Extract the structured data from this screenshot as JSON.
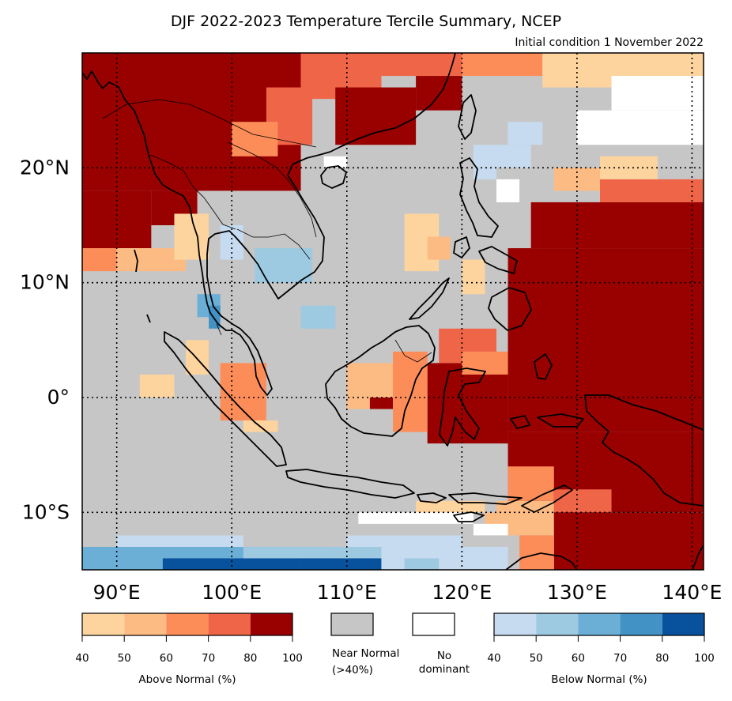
{
  "title": "DJF 2022-2023 Temperature Tercile Summary, NCEP",
  "subtitle": "Initial condition 1 November 2022",
  "map": {
    "lon_range": [
      87,
      141
    ],
    "lat_range": [
      -15,
      30
    ],
    "lon_ticks": [
      {
        "value": 90,
        "label": "90°E"
      },
      {
        "value": 100,
        "label": "100°E"
      },
      {
        "value": 110,
        "label": "110°E"
      },
      {
        "value": 120,
        "label": "120°E"
      },
      {
        "value": 130,
        "label": "130°E"
      },
      {
        "value": 140,
        "label": "140°E"
      }
    ],
    "lat_ticks": [
      {
        "value": 20,
        "label": "20°N"
      },
      {
        "value": 10,
        "label": "10°N"
      },
      {
        "value": 0,
        "label": "0°"
      },
      {
        "value": -10,
        "label": "10°S"
      }
    ],
    "gridlines": "dotted",
    "colors": {
      "above": [
        "#fdd49e",
        "#fdbb84",
        "#fc8d59",
        "#ef6548",
        "#990000"
      ],
      "near_normal": "#c6c6c6",
      "no_dominant": "#ffffff",
      "below": [
        "#c6dbef",
        "#9ecae1",
        "#6baed6",
        "#4292c6",
        "#08519c"
      ],
      "coast": "#000000"
    }
  },
  "legend": {
    "above": {
      "ticks": [
        "40",
        "50",
        "60",
        "70",
        "80",
        "100"
      ],
      "label": "Above Normal (%)"
    },
    "near_normal": {
      "line1": "Near Normal",
      "line2": "(>40%)"
    },
    "no_dominant": {
      "line1": "No",
      "line2": "dominant"
    },
    "below": {
      "ticks": [
        "40",
        "50",
        "60",
        "70",
        "80",
        "100"
      ],
      "label": "Below Normal (%)"
    }
  }
}
